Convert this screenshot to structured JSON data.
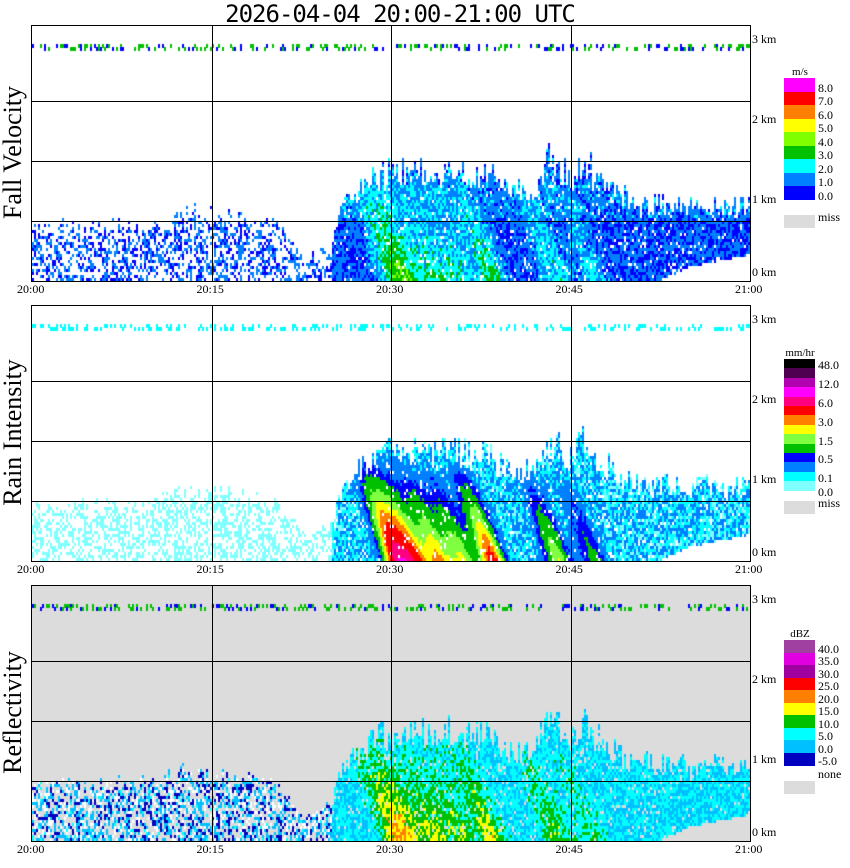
{
  "title": "2026-04-04   20:00-21:00 UTC",
  "chart_data": {
    "type": "heatmap",
    "title": "2026-04-04   20:00-21:00 UTC",
    "x_ticks": [
      "20:00",
      "20:15",
      "20:30",
      "20:45",
      "21:00"
    ],
    "x_range_minutes": [
      0,
      60
    ],
    "y_ticks": [
      "0 km",
      "1 km",
      "2 km",
      "3 km"
    ],
    "y_range_km": [
      0,
      3.2
    ],
    "grid_km": [
      0.75,
      1.5,
      2.25
    ],
    "grid_minutes": [
      15,
      30,
      45
    ],
    "echo_top_km": {
      "minute": [
        0,
        5,
        10,
        12,
        15,
        20,
        23,
        25,
        26,
        29,
        33,
        38,
        40,
        42,
        43,
        45,
        46,
        48,
        50,
        55,
        60
      ],
      "km": [
        0.7,
        0.7,
        0.75,
        0.85,
        0.85,
        0.75,
        0.3,
        0.5,
        1.0,
        1.35,
        1.4,
        1.35,
        1.1,
        1.15,
        1.55,
        1.3,
        1.5,
        1.2,
        1.0,
        0.95,
        0.95
      ]
    },
    "echo_base_km": {
      "minute": [
        0,
        52,
        55,
        60
      ],
      "km": [
        0,
        0,
        0.2,
        0.35
      ]
    },
    "rain_cores": {
      "minute": [
        30.5,
        32,
        34,
        36,
        38.5,
        44,
        47
      ],
      "strength": [
        1,
        0.8,
        0.7,
        0.6,
        0.9,
        0.6,
        0.4
      ]
    },
    "panels": [
      {
        "name": "Fall Velocity",
        "unit": "m/s",
        "colors": [
          "#ff00ff",
          "#ff0000",
          "#ff8000",
          "#ffff00",
          "#80ff00",
          "#00c000",
          "#00ffff",
          "#0080ff",
          "#0000ff"
        ],
        "labels": [
          "8.0",
          "7.0",
          "6.0",
          "5.0",
          "4.0",
          "3.0",
          "2.0",
          "1.0",
          "0.0"
        ],
        "thresholds": [
          8,
          7,
          6,
          5,
          4,
          3,
          2,
          1,
          0
        ],
        "missing_label": "miss",
        "missing_color": "#dcdcdc",
        "background": "#ffffff"
      },
      {
        "name": "Rain Intensity",
        "unit": "mm/hr",
        "colors": [
          "#000000",
          "#500050",
          "#b000b0",
          "#ff00ff",
          "#ff0080",
          "#ff0000",
          "#ff8000",
          "#ffff00",
          "#80ff40",
          "#00c000",
          "#0000ff",
          "#0080ff",
          "#00ffff",
          "#80ffff"
        ],
        "labels": [
          "48.0",
          "12.0",
          "6.0",
          "3.0",
          "1.5",
          "0.5",
          "0.1",
          "0.0"
        ],
        "thresholds": [
          48,
          24,
          12,
          8,
          6,
          4,
          3,
          2.2,
          1.5,
          0.8,
          0.5,
          0.2,
          0.1,
          0
        ],
        "missing_label": "miss",
        "missing_color": "#dcdcdc",
        "background": "#ffffff"
      },
      {
        "name": "Reflectivity",
        "unit": "dBZ",
        "colors": [
          "#a040a0",
          "#e000e0",
          "#a000a0",
          "#ff0000",
          "#ff8000",
          "#ffff00",
          "#00c000",
          "#00ffff",
          "#00c0ff",
          "#0000c0"
        ],
        "labels": [
          "40.0",
          "35.0",
          "30.0",
          "25.0",
          "20.0",
          "15.0",
          "10.0",
          "5.0",
          "0.0",
          "-5.0"
        ],
        "thresholds": [
          40,
          35,
          30,
          25,
          20,
          15,
          10,
          5,
          0,
          -5
        ],
        "missing_label": "none",
        "missing_color": "#dcdcdc",
        "background": "#dcdcdc"
      }
    ]
  }
}
